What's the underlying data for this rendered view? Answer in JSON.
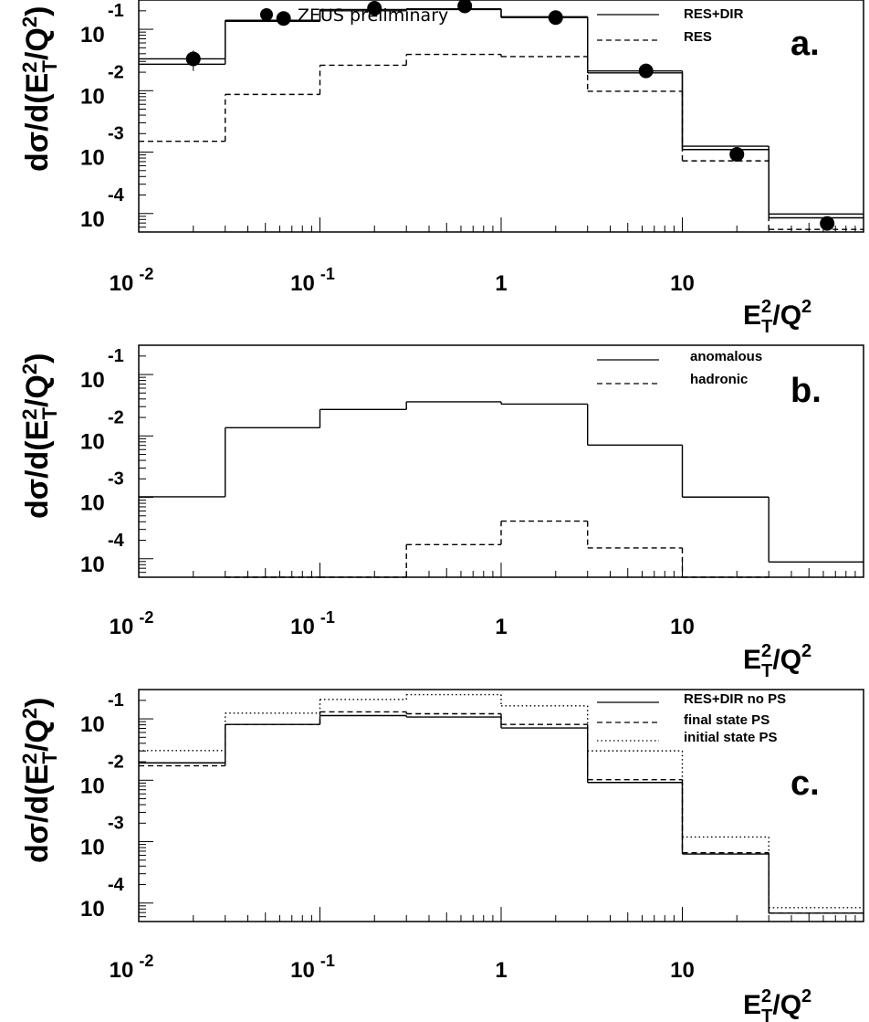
{
  "chart_data": [
    {
      "panel": "a.",
      "type": "line",
      "step": true,
      "xscale": "log",
      "yscale": "log",
      "x_edges": [
        0.01,
        0.03,
        0.1,
        0.3,
        1,
        3,
        10,
        30,
        100
      ],
      "xlim": [
        0.01,
        100
      ],
      "ylim": [
        5e-05,
        0.3
      ],
      "xlabel": "E_T^2/Q^2",
      "ylabel": "dσ/d(E_T^2/Q^2)",
      "x_tick_labels": [
        {
          "x": 0.01,
          "base": "10",
          "exp": "-2"
        },
        {
          "x": 0.1,
          "base": "10",
          "exp": "-1"
        },
        {
          "x": 1,
          "base": "1",
          "exp": ""
        },
        {
          "x": 10,
          "base": "10",
          "exp": ""
        }
      ],
      "y_tick_labels": [
        {
          "y": 0.1,
          "base": "10",
          "exp": "-1"
        },
        {
          "y": 0.01,
          "base": "10",
          "exp": "-2"
        },
        {
          "y": 0.001,
          "base": "10",
          "exp": "-3"
        },
        {
          "y": 0.0001,
          "base": "10",
          "exp": "-4"
        }
      ],
      "series": [
        {
          "name": "RES+DIR",
          "style": "solid-band",
          "values": [
            0.027,
            0.135,
            0.2,
            0.21,
            0.155,
            0.0195,
            0.0011,
            8.5e-05
          ],
          "upper": [
            0.033,
            0.14,
            0.21,
            0.215,
            0.16,
            0.021,
            0.00125,
            9.8e-05
          ]
        },
        {
          "name": "RES",
          "style": "dashed",
          "values": [
            0.0015,
            0.0087,
            0.026,
            0.039,
            0.036,
            0.0098,
            0.00072,
            5.5e-05
          ]
        }
      ],
      "points": {
        "name": "ZEUS preliminary",
        "x": [
          0.02,
          0.063,
          0.2,
          0.63,
          2,
          6.3,
          20,
          63
        ],
        "y": [
          0.033,
          0.15,
          0.22,
          0.24,
          0.155,
          0.021,
          0.00092,
          6.9e-05
        ],
        "yerr": [
          0.012,
          0.01,
          0.01,
          0.01,
          0.008,
          0.002,
          8e-05,
          8e-06
        ]
      },
      "legend_position": "top-right"
    },
    {
      "panel": "b.",
      "type": "line",
      "step": true,
      "xscale": "log",
      "yscale": "log",
      "x_edges": [
        0.01,
        0.03,
        0.1,
        0.3,
        1,
        3,
        10,
        30,
        100
      ],
      "xlim": [
        0.01,
        100
      ],
      "ylim": [
        5e-05,
        0.3
      ],
      "xlabel": "E_T^2/Q^2",
      "ylabel": "dσ/d(E_T^2/Q^2)",
      "x_tick_labels": [
        {
          "x": 0.01,
          "base": "10",
          "exp": "-2"
        },
        {
          "x": 0.1,
          "base": "10",
          "exp": "-1"
        },
        {
          "x": 1,
          "base": "1",
          "exp": ""
        },
        {
          "x": 10,
          "base": "10",
          "exp": ""
        }
      ],
      "y_tick_labels": [
        {
          "y": 0.1,
          "base": "10",
          "exp": "-1"
        },
        {
          "y": 0.01,
          "base": "10",
          "exp": "-2"
        },
        {
          "y": 0.001,
          "base": "10",
          "exp": "-3"
        },
        {
          "y": 0.0001,
          "base": "10",
          "exp": "-4"
        }
      ],
      "series": [
        {
          "name": "anomalous",
          "style": "solid",
          "values": [
            0.00102,
            0.0136,
            0.027,
            0.036,
            0.033,
            0.0071,
            0.00101,
            8.85e-05
          ]
        },
        {
          "name": "hadronic",
          "style": "dashed",
          "values": [
            null,
            5e-05,
            5e-05,
            0.00017,
            0.00041,
            0.00015,
            5e-05,
            null
          ]
        }
      ],
      "legend_position": "top-right"
    },
    {
      "panel": "c.",
      "type": "line",
      "step": true,
      "xscale": "log",
      "yscale": "log",
      "x_edges": [
        0.01,
        0.03,
        0.1,
        0.3,
        1,
        3,
        10,
        30,
        100
      ],
      "xlim": [
        0.01,
        100
      ],
      "ylim": [
        5e-05,
        0.3
      ],
      "xlabel": "E_T^2/Q^2",
      "ylabel": "dσ/d(E_T^2/Q^2)",
      "x_tick_labels": [
        {
          "x": 0.01,
          "base": "10",
          "exp": "-2"
        },
        {
          "x": 0.1,
          "base": "10",
          "exp": "-1"
        },
        {
          "x": 1,
          "base": "1",
          "exp": ""
        },
        {
          "x": 10,
          "base": "10",
          "exp": ""
        }
      ],
      "y_tick_labels": [
        {
          "y": 0.1,
          "base": "10",
          "exp": "-1"
        },
        {
          "y": 0.01,
          "base": "10",
          "exp": "-2"
        },
        {
          "y": 0.001,
          "base": "10",
          "exp": "-3"
        },
        {
          "y": 0.0001,
          "base": "10",
          "exp": "-4"
        }
      ],
      "series": [
        {
          "name": "RES+DIR no PS",
          "style": "solid",
          "values": [
            0.0192,
            0.0812,
            0.113,
            0.107,
            0.0711,
            0.0092,
            0.00063,
            6.85e-05
          ]
        },
        {
          "name": "final state PS",
          "style": "dashed",
          "values": [
            0.0172,
            0.0812,
            0.13,
            0.121,
            0.081,
            0.0102,
            0.00066,
            6.85e-05
          ]
        },
        {
          "name": "initial state PS",
          "style": "dotted",
          "values": [
            0.0304,
            0.124,
            0.207,
            0.248,
            0.163,
            0.0301,
            0.00119,
            8.4e-05
          ]
        }
      ],
      "legend_position": "top-right"
    }
  ],
  "colors": {
    "ink": "#000000",
    "background": "#ffffff"
  }
}
